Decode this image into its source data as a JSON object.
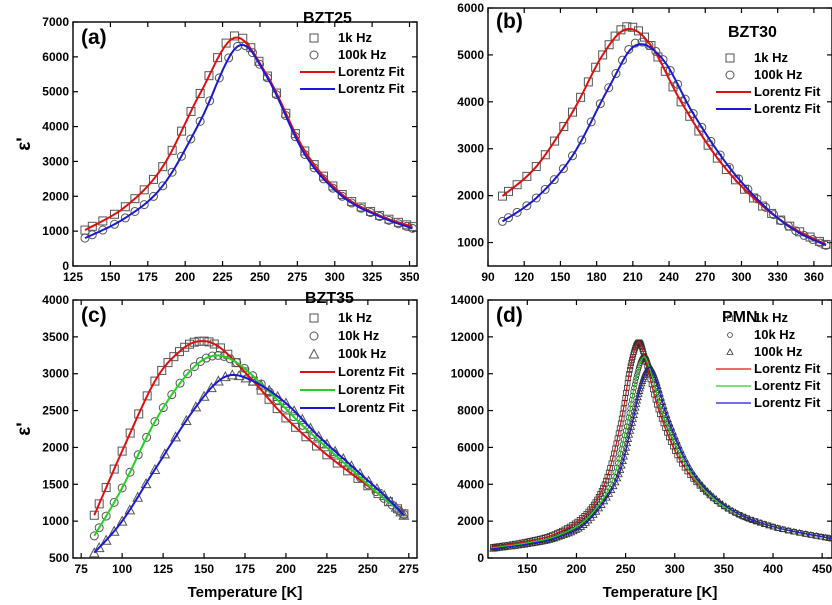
{
  "panels": [
    {
      "id": "a",
      "label": "(a)",
      "name": "BZT25",
      "x": {
        "min": 125,
        "max": 355,
        "ticks": [
          125,
          150,
          175,
          200,
          225,
          250,
          275,
          300,
          325,
          350
        ]
      },
      "y": {
        "min": 0,
        "max": 7000,
        "ticks": [
          0,
          1000,
          2000,
          3000,
          4000,
          5000,
          6000,
          7000
        ]
      },
      "ylabel": "ε'",
      "xlabel": "",
      "legend": [
        "1k Hz",
        "100k Hz",
        "Lorentz Fit",
        "Lorentz Fit"
      ]
    },
    {
      "id": "b",
      "label": "(b)",
      "name": "BZT30",
      "x": {
        "min": 90,
        "max": 375,
        "ticks": [
          90,
          120,
          150,
          180,
          210,
          240,
          270,
          300,
          330,
          360
        ]
      },
      "y": {
        "min": 500,
        "max": 6000,
        "ticks": [
          1000,
          2000,
          3000,
          4000,
          5000,
          6000
        ]
      },
      "ylabel": "",
      "xlabel": "",
      "legend": [
        "1k Hz",
        "100k Hz",
        "Lorentz Fit",
        "Lorentz Fit"
      ]
    },
    {
      "id": "c",
      "label": "(c)",
      "name": "BZT35",
      "x": {
        "min": 70,
        "max": 280,
        "ticks": [
          75,
          100,
          125,
          150,
          175,
          200,
          225,
          250,
          275
        ]
      },
      "y": {
        "min": 500,
        "max": 4000,
        "ticks": [
          500,
          1000,
          1500,
          2000,
          2500,
          3000,
          3500,
          4000
        ]
      },
      "ylabel": "ε'",
      "xlabel": "Temperature [K]",
      "legend": [
        "1k Hz",
        "10k Hz",
        "100k Hz",
        "Lorentz Fit",
        "Lorentz Fit",
        "Lorentz Fit"
      ]
    },
    {
      "id": "d",
      "label": "(d)",
      "name": "PMN",
      "x": {
        "min": 110,
        "max": 460,
        "ticks": [
          150,
          200,
          250,
          300,
          350,
          400,
          450
        ]
      },
      "y": {
        "min": 0,
        "max": 14000,
        "ticks": [
          0,
          2000,
          4000,
          6000,
          8000,
          10000,
          12000,
          14000
        ]
      },
      "ylabel": "",
      "xlabel": "Temperature [K]",
      "legend": [
        "1k Hz",
        "10k Hz",
        "100k Hz",
        "Lorentz Fit",
        "Lorentz Fit",
        "Lorentz Fit"
      ]
    }
  ],
  "chart_data": [
    {
      "type": "scatter",
      "panel": "(a)",
      "title": "BZT25",
      "xlabel": "",
      "ylabel": "ε'",
      "xlim": [
        125,
        355
      ],
      "ylim": [
        0,
        7000
      ],
      "grid": false,
      "legend": "top-right",
      "series": [
        {
          "name": "1k Hz",
          "marker": "square",
          "color": "#555555",
          "x": [
            133,
            160,
            185,
            210,
            233,
            255,
            280,
            305,
            330,
            352
          ],
          "y": [
            1030,
            1700,
            2850,
            4950,
            6600,
            5450,
            3300,
            2050,
            1450,
            1130
          ]
        },
        {
          "name": "100k Hz",
          "marker": "circle",
          "color": "#555555",
          "x": [
            133,
            160,
            185,
            210,
            235,
            255,
            280,
            305,
            330,
            352
          ],
          "y": [
            800,
            1380,
            2300,
            4150,
            6300,
            5400,
            3200,
            2000,
            1420,
            1080
          ]
        },
        {
          "name": "Lorentz Fit",
          "line": true,
          "color": "#e01010",
          "x": [
            133,
            160,
            185,
            210,
            233,
            255,
            280,
            305,
            330,
            352
          ],
          "y": [
            1030,
            1700,
            2850,
            4950,
            6550,
            5450,
            3300,
            2050,
            1450,
            1130
          ]
        },
        {
          "name": "Lorentz Fit",
          "line": true,
          "color": "#1a1ad6",
          "x": [
            133,
            160,
            185,
            210,
            235,
            255,
            280,
            305,
            330,
            352
          ],
          "y": [
            800,
            1380,
            2300,
            4150,
            6300,
            5400,
            3200,
            2000,
            1420,
            1080
          ]
        }
      ]
    },
    {
      "type": "scatter",
      "panel": "(b)",
      "title": "BZT30",
      "xlabel": "",
      "ylabel": "",
      "xlim": [
        90,
        375
      ],
      "ylim": [
        500,
        6000
      ],
      "grid": false,
      "legend": "top-right",
      "series": [
        {
          "name": "1k Hz",
          "marker": "square",
          "color": "#555555",
          "x": [
            102,
            130,
            160,
            185,
            205,
            225,
            250,
            280,
            310,
            340,
            370
          ],
          "y": [
            1990,
            2620,
            3780,
            5000,
            5600,
            5200,
            4000,
            2800,
            1950,
            1350,
            960
          ]
        },
        {
          "name": "100k Hz",
          "marker": "circle",
          "color": "#555555",
          "x": [
            102,
            130,
            160,
            190,
            212,
            235,
            260,
            290,
            320,
            345,
            370
          ],
          "y": [
            1450,
            1950,
            2850,
            4300,
            5250,
            4900,
            3750,
            2600,
            1750,
            1250,
            940
          ]
        },
        {
          "name": "Lorentz Fit",
          "line": true,
          "color": "#e01010",
          "x": [
            102,
            130,
            160,
            185,
            205,
            225,
            250,
            280,
            310,
            340,
            370
          ],
          "y": [
            1990,
            2620,
            3780,
            5000,
            5550,
            5200,
            4000,
            2800,
            1950,
            1350,
            960
          ]
        },
        {
          "name": "Lorentz Fit",
          "line": true,
          "color": "#1a1ad6",
          "x": [
            102,
            130,
            160,
            190,
            212,
            235,
            260,
            290,
            320,
            345,
            370
          ],
          "y": [
            1450,
            1950,
            2850,
            4300,
            5200,
            4900,
            3750,
            2600,
            1750,
            1250,
            940
          ]
        }
      ]
    },
    {
      "type": "scatter",
      "panel": "(c)",
      "title": "BZT35",
      "xlabel": "Temperature [K]",
      "ylabel": "ε'",
      "xlim": [
        70,
        280
      ],
      "ylim": [
        500,
        4000
      ],
      "grid": false,
      "legend": "top-right",
      "series": [
        {
          "name": "1k Hz",
          "marker": "square",
          "color": "#555555",
          "x": [
            83,
            100,
            120,
            135,
            147,
            160,
            180,
            200,
            225,
            250,
            272
          ],
          "y": [
            1080,
            1950,
            2900,
            3300,
            3440,
            3350,
            2900,
            2400,
            1900,
            1480,
            1100
          ]
        },
        {
          "name": "10k Hz",
          "marker": "circle",
          "color": "#555555",
          "x": [
            83,
            100,
            120,
            140,
            155,
            170,
            190,
            210,
            235,
            255,
            272
          ],
          "y": [
            800,
            1450,
            2350,
            3000,
            3240,
            3150,
            2750,
            2300,
            1800,
            1400,
            1090
          ]
        },
        {
          "name": "100k Hz",
          "marker": "triangle",
          "color": "#555555",
          "x": [
            83,
            100,
            120,
            145,
            163,
            180,
            200,
            220,
            240,
            260,
            272
          ],
          "y": [
            570,
            1000,
            1700,
            2550,
            2960,
            2900,
            2600,
            2150,
            1750,
            1350,
            1080
          ]
        },
        {
          "name": "Lorentz Fit",
          "line": true,
          "color": "#e01010",
          "x": [
            83,
            100,
            120,
            135,
            147,
            160,
            180,
            200,
            225,
            250,
            272
          ],
          "y": [
            1080,
            1950,
            2900,
            3300,
            3440,
            3350,
            2900,
            2400,
            1900,
            1480,
            1100
          ]
        },
        {
          "name": "Lorentz Fit",
          "line": true,
          "color": "#22d422",
          "x": [
            83,
            100,
            120,
            140,
            155,
            170,
            190,
            210,
            235,
            255,
            272
          ],
          "y": [
            800,
            1450,
            2350,
            3000,
            3240,
            3150,
            2750,
            2300,
            1800,
            1400,
            1090
          ]
        },
        {
          "name": "Lorentz Fit",
          "line": true,
          "color": "#1a1ad6",
          "x": [
            83,
            100,
            120,
            145,
            163,
            180,
            200,
            220,
            240,
            260,
            272
          ],
          "y": [
            570,
            1000,
            1700,
            2550,
            2960,
            2900,
            2600,
            2150,
            1750,
            1350,
            1080
          ]
        }
      ]
    },
    {
      "type": "scatter",
      "panel": "(d)",
      "title": "PMN",
      "xlabel": "Temperature [K]",
      "ylabel": "",
      "xlim": [
        110,
        460
      ],
      "ylim": [
        0,
        14000
      ],
      "grid": false,
      "legend": "top-right",
      "series": [
        {
          "name": "1k Hz",
          "marker": "square-small",
          "color": "#333333",
          "x": [
            115,
            150,
            180,
            210,
            230,
            245,
            255,
            263,
            270,
            285,
            310,
            350,
            400,
            460
          ],
          "y": [
            600,
            900,
            1350,
            2400,
            4200,
            7300,
            10400,
            11700,
            10800,
            7800,
            4900,
            2800,
            1700,
            1050
          ]
        },
        {
          "name": "10k Hz",
          "marker": "circle-small",
          "color": "#333333",
          "x": [
            115,
            150,
            180,
            210,
            235,
            250,
            260,
            268,
            275,
            290,
            315,
            350,
            400,
            460
          ],
          "y": [
            550,
            820,
            1200,
            2100,
            4000,
            6900,
            9600,
            10900,
            10200,
            7500,
            4700,
            2800,
            1700,
            1050
          ]
        },
        {
          "name": "100k Hz",
          "marker": "triangle-small",
          "color": "#333333",
          "x": [
            115,
            150,
            180,
            210,
            240,
            255,
            265,
            273,
            280,
            295,
            320,
            355,
            400,
            460
          ],
          "y": [
            500,
            750,
            1100,
            1900,
            4100,
            6900,
            9200,
            10300,
            9800,
            7300,
            4500,
            2700,
            1700,
            1050
          ]
        },
        {
          "name": "Lorentz Fit",
          "line": true,
          "color": "#e01010",
          "x": [
            115,
            150,
            180,
            210,
            230,
            245,
            255,
            263,
            270,
            285,
            310,
            350,
            400,
            460
          ],
          "y": [
            600,
            900,
            1350,
            2400,
            4200,
            7300,
            10400,
            11700,
            10800,
            7800,
            4900,
            2800,
            1700,
            1050
          ]
        },
        {
          "name": "Lorentz Fit",
          "line": true,
          "color": "#22d422",
          "x": [
            115,
            150,
            180,
            210,
            235,
            250,
            260,
            268,
            275,
            290,
            315,
            350,
            400,
            460
          ],
          "y": [
            550,
            820,
            1200,
            2100,
            4000,
            6900,
            9600,
            10900,
            10200,
            7500,
            4700,
            2800,
            1700,
            1050
          ]
        },
        {
          "name": "Lorentz Fit",
          "line": true,
          "color": "#1a1ad6",
          "x": [
            115,
            150,
            180,
            210,
            240,
            255,
            265,
            273,
            280,
            295,
            320,
            355,
            400,
            460
          ],
          "y": [
            500,
            750,
            1100,
            1900,
            4100,
            6900,
            9200,
            10300,
            9800,
            7300,
            4500,
            2700,
            1700,
            1050
          ]
        }
      ]
    }
  ]
}
